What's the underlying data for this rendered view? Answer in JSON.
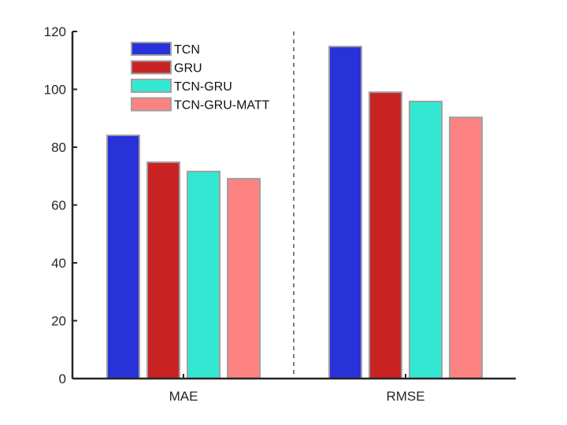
{
  "chart_data": {
    "type": "bar",
    "title": "",
    "xlabel": "",
    "ylabel": "",
    "categories": [
      "MAE",
      "RMSE"
    ],
    "series": [
      {
        "name": "TCN",
        "color": "#2832d8",
        "values": [
          84.1,
          114.8
        ]
      },
      {
        "name": "GRU",
        "color": "#c92323",
        "values": [
          74.8,
          99.0
        ]
      },
      {
        "name": "TCN-GRU",
        "color": "#33e8d2",
        "values": [
          71.6,
          95.8
        ]
      },
      {
        "name": "TCN-GRU-MATT",
        "color": "#fd8282",
        "values": [
          69.1,
          90.3
        ]
      }
    ],
    "ylim": [
      0,
      120
    ],
    "yticks": [
      0,
      20,
      40,
      60,
      80,
      100,
      120
    ],
    "grid": false,
    "legend_position": "upper-left-inside",
    "separator": "dashed vertical line between groups"
  }
}
